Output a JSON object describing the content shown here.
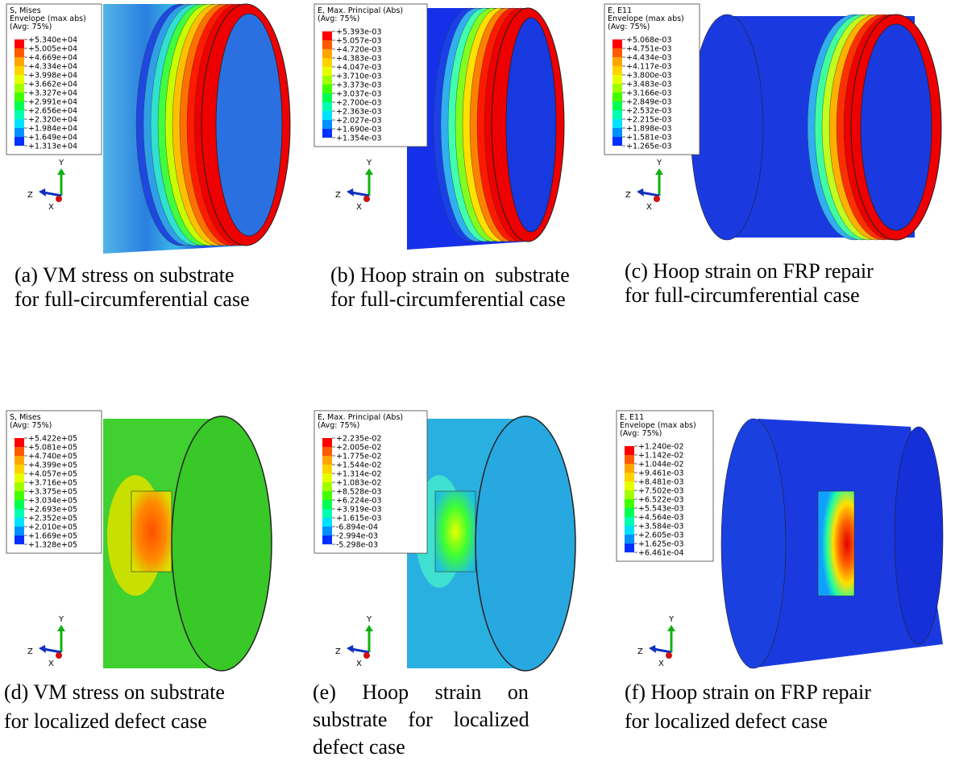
{
  "panels": [
    {
      "legend": {
        "lines": [
          "S, Mises",
          "Envelope (max abs)",
          "(Avg: 75%)"
        ],
        "labels": [
          "+5.340e+04",
          "+5.005e+04",
          "+4.669e+04",
          "+4.334e+04",
          "+3.998e+04",
          "+3.662e+04",
          "+3.327e+04",
          "+2.991e+04",
          "+2.656e+04",
          "+2.320e+04",
          "+1.984e+04",
          "+1.649e+04",
          "+1.313e+04"
        ]
      },
      "triad": {
        "y": "Y",
        "z": "Z",
        "x": "X"
      },
      "caption": [
        "(a) VM stress on substrate",
        "for full-circumferential case"
      ]
    },
    {
      "legend": {
        "lines": [
          "E, Max. Principal (Abs)",
          "(Avg: 75%)"
        ],
        "labels": [
          "+5.393e-03",
          "+5.057e-03",
          "+4.720e-03",
          "+4.383e-03",
          "+4.047e-03",
          "+3.710e-03",
          "+3.373e-03",
          "+3.037e-03",
          "+2.700e-03",
          "+2.363e-03",
          "+2.027e-03",
          "+1.690e-03",
          "+1.354e-03"
        ]
      },
      "triad": {
        "y": "Y",
        "z": "Z",
        "x": "X"
      },
      "caption": [
        "(b) Hoop strain on  substrate",
        "for full-circumferential case"
      ]
    },
    {
      "legend": {
        "lines": [
          "E, E11",
          "Envelope (max abs)",
          "(Avg: 75%)"
        ],
        "labels": [
          "+5.068e-03",
          "+4.751e-03",
          "+4.434e-03",
          "+4.117e-03",
          "+3.800e-03",
          "+3.483e-03",
          "+3.166e-03",
          "+2.849e-03",
          "+2.532e-03",
          "+2.215e-03",
          "+1.898e-03",
          "+1.581e-03",
          "+1.265e-03"
        ]
      },
      "triad": {
        "y": "Y",
        "z": "Z",
        "x": "X"
      },
      "caption": [
        "(c) Hoop strain on FRP repair",
        "for full-circumferential case"
      ]
    },
    {
      "legend": {
        "lines": [
          "S, Mises",
          "(Avg: 75%)"
        ],
        "labels": [
          "+5.422e+05",
          "+5.081e+05",
          "+4.740e+05",
          "+4.399e+05",
          "+4.057e+05",
          "+3.716e+05",
          "+3.375e+05",
          "+3.034e+05",
          "+2.693e+05",
          "+2.352e+05",
          "+2.010e+05",
          "+1.669e+05",
          "+1.328e+05"
        ]
      },
      "triad": {
        "y": "Y",
        "z": "Z",
        "x": "X"
      },
      "caption": [
        "(d) VM stress on substrate",
        "for localized defect case"
      ]
    },
    {
      "legend": {
        "lines": [
          "E, Max. Principal (Abs)",
          "(Avg: 75%)"
        ],
        "labels": [
          "+2.235e-02",
          "+2.005e-02",
          "+1.775e-02",
          "+1.544e-02",
          "+1.314e-02",
          "+1.083e-02",
          "+8.528e-03",
          "+6.224e-03",
          "+3.919e-03",
          "+1.615e-03",
          "-6.894e-04",
          "-2.994e-03",
          "-5.298e-03"
        ]
      },
      "triad": {
        "y": "Y",
        "z": "Z",
        "x": "X"
      },
      "caption": [
        "(e)     Hoop     strain     on",
        "substrate    for    localized",
        "defect case"
      ]
    },
    {
      "legend": {
        "lines": [
          "E, E11",
          "Envelope (max abs)",
          "(Avg: 75%)"
        ],
        "labels": [
          "+1.240e-02",
          "+1.142e-02",
          "+1.044e-02",
          "+9.461e-03",
          "+8.481e-03",
          "+7.502e-03",
          "+6.522e-03",
          "+5.543e-03",
          "+4.564e-03",
          "+3.584e-03",
          "+2.605e-03",
          "+1.625e-03",
          "+6.461e-04"
        ]
      },
      "triad": {
        "y": "Y",
        "z": "Z",
        "x": "X"
      },
      "caption": [
        "(f) Hoop strain on FRP repair",
        "for localized defect case"
      ]
    }
  ]
}
